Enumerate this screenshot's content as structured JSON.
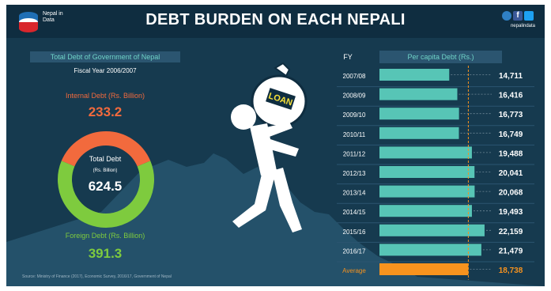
{
  "brand": {
    "name": "Nepal in Data",
    "handle": "nepalindata"
  },
  "title": "DEBT BURDEN ON EACH NEPALI",
  "left": {
    "section_title": "Total Debt of Government of Nepal",
    "fiscal_year": "Fiscal Year 2006/2007",
    "internal_label": "Internal Debt (Rs. Billion)",
    "internal_value": "233.2",
    "total_label": "Total Debt",
    "total_unit": "(Rs. Billion)",
    "total_value": "624.5",
    "foreign_label": "Foreign Debt (Rs. Billion)",
    "foreign_value": "391.3"
  },
  "figure_label": "LOAN",
  "source": "Source: Ministry of Finance (2017), Economic Survey, 2016/17, Government of Nepal",
  "colors": {
    "background": "#163a4f",
    "bar": "#57c5b6",
    "average_bar": "#f7931e",
    "internal": "#f26a3d",
    "foreign": "#7ecb3e"
  },
  "chart_data": [
    {
      "type": "pie",
      "style": "donut",
      "categories": [
        "Internal Debt",
        "Foreign Debt"
      ],
      "values": [
        233.2,
        391.3
      ],
      "total": 624.5
    },
    {
      "type": "bar",
      "orientation": "horizontal",
      "xlabel": "FY",
      "ylabel": "Per capita Debt (Rs.)",
      "categories": [
        "2007/08",
        "2008/09",
        "2009/10",
        "2010/11",
        "2011/12",
        "2012/13",
        "2013/14",
        "2014/15",
        "2015/16",
        "2016/17",
        "Average"
      ],
      "values": [
        14711,
        16416,
        16773,
        16749,
        19488,
        20041,
        20068,
        19493,
        22159,
        21479,
        18738
      ],
      "labels": [
        "14,711",
        "16,416",
        "16,773",
        "16,749",
        "19,488",
        "20,041",
        "20,068",
        "19,493",
        "22,159",
        "21,479",
        "18,738"
      ],
      "average_line": 18738
    }
  ]
}
